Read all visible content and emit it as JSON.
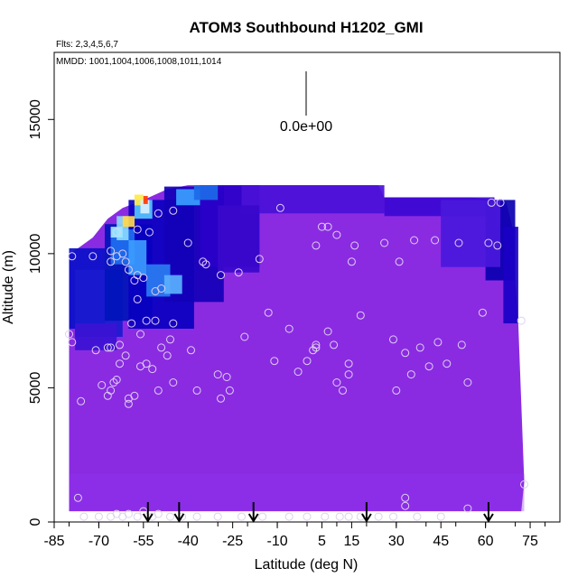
{
  "chart_data": {
    "type": "heatmap",
    "title": "ATOM3 Southbound H1202_GMI",
    "subtitle_flights": "Flts: 2,3,4,5,6,7",
    "subtitle_dates": "MMDD: 1001,1004,1006,1008,1011,1014",
    "xlabel": "Latitude (deg N)",
    "ylabel": "Altitude (m)",
    "xlim": [
      -85,
      85
    ],
    "ylim": [
      0,
      17500
    ],
    "x_ticks": [
      -85,
      -70,
      -55,
      -40,
      -25,
      -10,
      5,
      15,
      30,
      45,
      60,
      75
    ],
    "y_ticks": [
      0,
      5000,
      10000,
      15000
    ],
    "x_tick_labels": [
      "-85",
      "-70",
      "-55",
      "-40",
      "-25",
      "-10",
      "5",
      "15",
      "30",
      "45",
      "60",
      "75"
    ],
    "y_tick_labels": [
      "0",
      "5000",
      "10000",
      "15000"
    ],
    "colorbar_value_label": "0.0e+00",
    "colors": {
      "background_fill": "#8a2be2",
      "low": "#0000b4",
      "mid": "#1e90ff",
      "high": "#ffd700",
      "peak": "#ff2a00",
      "marker_stroke": "#e0d0f0"
    },
    "arrow_latitudes": [
      -53.5,
      -43,
      -18,
      20,
      61
    ],
    "profile_points": [
      {
        "lat": -79,
        "alt": 9900
      },
      {
        "lat": -80,
        "alt": 7000
      },
      {
        "lat": -79,
        "alt": 6700
      },
      {
        "lat": -76,
        "alt": 4500
      },
      {
        "lat": -77,
        "alt": 900
      },
      {
        "lat": -72,
        "alt": 9900
      },
      {
        "lat": -71,
        "alt": 6400
      },
      {
        "lat": -69,
        "alt": 5100
      },
      {
        "lat": -67,
        "alt": 4700
      },
      {
        "lat": -66,
        "alt": 4900
      },
      {
        "lat": -65,
        "alt": 5200
      },
      {
        "lat": -64,
        "alt": 5300
      },
      {
        "lat": -67,
        "alt": 6500
      },
      {
        "lat": -66,
        "alt": 6500
      },
      {
        "lat": -63,
        "alt": 6600
      },
      {
        "lat": -61,
        "alt": 6200
      },
      {
        "lat": -63,
        "alt": 5900
      },
      {
        "lat": -60,
        "alt": 4400
      },
      {
        "lat": -60,
        "alt": 4600
      },
      {
        "lat": -58,
        "alt": 4700
      },
      {
        "lat": -56,
        "alt": 5800
      },
      {
        "lat": -54,
        "alt": 5900
      },
      {
        "lat": -52,
        "alt": 5700
      },
      {
        "lat": -50,
        "alt": 4900
      },
      {
        "lat": -49,
        "alt": 6500
      },
      {
        "lat": -47,
        "alt": 6200
      },
      {
        "lat": -46,
        "alt": 6800
      },
      {
        "lat": -54,
        "alt": 7500
      },
      {
        "lat": -51,
        "alt": 7500
      },
      {
        "lat": -56,
        "alt": 7000
      },
      {
        "lat": -59,
        "alt": 7400
      },
      {
        "lat": -45,
        "alt": 7400
      },
      {
        "lat": -45,
        "alt": 5200
      },
      {
        "lat": -39,
        "alt": 6400
      },
      {
        "lat": -37,
        "alt": 4900
      },
      {
        "lat": -30,
        "alt": 5500
      },
      {
        "lat": -27,
        "alt": 5400
      },
      {
        "lat": -26,
        "alt": 4900
      },
      {
        "lat": -29,
        "alt": 4600
      },
      {
        "lat": -21,
        "alt": 6900
      },
      {
        "lat": -66,
        "alt": 9700
      },
      {
        "lat": -64,
        "alt": 9900
      },
      {
        "lat": -61,
        "alt": 9700
      },
      {
        "lat": -60,
        "alt": 9400
      },
      {
        "lat": -58,
        "alt": 9000
      },
      {
        "lat": -57,
        "alt": 9200
      },
      {
        "lat": -55,
        "alt": 9100
      },
      {
        "lat": -51,
        "alt": 8600
      },
      {
        "lat": -49,
        "alt": 8700
      },
      {
        "lat": -57,
        "alt": 8300
      },
      {
        "lat": -62,
        "alt": 10000
      },
      {
        "lat": -66,
        "alt": 10100
      },
      {
        "lat": -64,
        "alt": 10800
      },
      {
        "lat": -57,
        "alt": 10900
      },
      {
        "lat": -53,
        "alt": 10800
      },
      {
        "lat": -50,
        "alt": 11500
      },
      {
        "lat": -45,
        "alt": 11600
      },
      {
        "lat": -40,
        "alt": 10400
      },
      {
        "lat": -35,
        "alt": 9700
      },
      {
        "lat": -34,
        "alt": 9600
      },
      {
        "lat": -29,
        "alt": 9200
      },
      {
        "lat": -23,
        "alt": 9300
      },
      {
        "lat": -16,
        "alt": 9800
      },
      {
        "lat": -13,
        "alt": 7800
      },
      {
        "lat": -6,
        "alt": 7200
      },
      {
        "lat": -11,
        "alt": 6000
      },
      {
        "lat": -3,
        "alt": 5600
      },
      {
        "lat": 0,
        "alt": 6000
      },
      {
        "lat": 2,
        "alt": 6400
      },
      {
        "lat": 3,
        "alt": 6500
      },
      {
        "lat": 3,
        "alt": 6600
      },
      {
        "lat": 7,
        "alt": 7100
      },
      {
        "lat": 9,
        "alt": 6600
      },
      {
        "lat": 10,
        "alt": 5200
      },
      {
        "lat": 12,
        "alt": 4900
      },
      {
        "lat": 14,
        "alt": 5500
      },
      {
        "lat": 14,
        "alt": 5900
      },
      {
        "lat": 18,
        "alt": 7700
      },
      {
        "lat": 15,
        "alt": 9700
      },
      {
        "lat": 16,
        "alt": 10300
      },
      {
        "lat": 10,
        "alt": 10700
      },
      {
        "lat": 3,
        "alt": 10300
      },
      {
        "lat": 5,
        "alt": 11000
      },
      {
        "lat": 7,
        "alt": 11000
      },
      {
        "lat": -9,
        "alt": 11700
      },
      {
        "lat": 26,
        "alt": 10400
      },
      {
        "lat": 31,
        "alt": 9700
      },
      {
        "lat": 36,
        "alt": 10500
      },
      {
        "lat": 43,
        "alt": 10500
      },
      {
        "lat": 51,
        "alt": 10400
      },
      {
        "lat": 61,
        "alt": 10400
      },
      {
        "lat": 64,
        "alt": 10300
      },
      {
        "lat": 59,
        "alt": 7800
      },
      {
        "lat": 52,
        "alt": 6600
      },
      {
        "lat": 54,
        "alt": 5200
      },
      {
        "lat": 44,
        "alt": 6700
      },
      {
        "lat": 47,
        "alt": 5900
      },
      {
        "lat": 41,
        "alt": 5800
      },
      {
        "lat": 38,
        "alt": 6500
      },
      {
        "lat": 33,
        "alt": 6300
      },
      {
        "lat": 29,
        "alt": 6800
      },
      {
        "lat": 30,
        "alt": 4900
      },
      {
        "lat": 35,
        "alt": 5500
      },
      {
        "lat": 62,
        "alt": 11900
      },
      {
        "lat": 65,
        "alt": 11900
      },
      {
        "lat": 72,
        "alt": 7500
      },
      {
        "lat": 73,
        "alt": 1400
      },
      {
        "lat": 33,
        "alt": 900
      },
      {
        "lat": 33,
        "alt": 600
      },
      {
        "lat": 54,
        "alt": 500
      },
      {
        "lat": -75,
        "alt": 200
      },
      {
        "lat": -70,
        "alt": 200
      },
      {
        "lat": -66,
        "alt": 200
      },
      {
        "lat": -64,
        "alt": 300
      },
      {
        "lat": -62,
        "alt": 200
      },
      {
        "lat": -60,
        "alt": 300
      },
      {
        "lat": -57,
        "alt": 200
      },
      {
        "lat": -55,
        "alt": 400
      },
      {
        "lat": -52,
        "alt": 200
      },
      {
        "lat": -50,
        "alt": 300
      },
      {
        "lat": -46,
        "alt": 200
      },
      {
        "lat": -42,
        "alt": 200
      },
      {
        "lat": -37,
        "alt": 200
      },
      {
        "lat": -30,
        "alt": 200
      },
      {
        "lat": -22,
        "alt": 200
      },
      {
        "lat": -15,
        "alt": 200
      },
      {
        "lat": -6,
        "alt": 200
      },
      {
        "lat": 0,
        "alt": 200
      },
      {
        "lat": 6,
        "alt": 200
      },
      {
        "lat": 11,
        "alt": 200
      },
      {
        "lat": 14,
        "alt": 200
      },
      {
        "lat": 18,
        "alt": 200
      },
      {
        "lat": 24,
        "alt": 200
      },
      {
        "lat": 29,
        "alt": 200
      },
      {
        "lat": 37,
        "alt": 200
      },
      {
        "lat": 45,
        "alt": 200
      }
    ]
  }
}
